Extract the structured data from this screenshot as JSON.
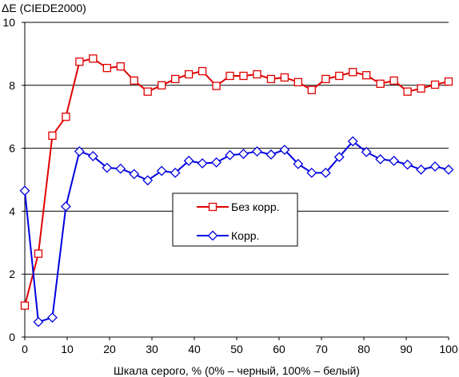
{
  "chart_data": {
    "type": "line",
    "title": "",
    "ylabel": "ΔE (CIEDE2000)",
    "xlabel": "Шкала серого, % (0% – черный, 100% – белый)",
    "xlim": [
      0,
      100
    ],
    "ylim": [
      0,
      10
    ],
    "xticks": [
      0,
      10,
      20,
      30,
      40,
      50,
      60,
      70,
      80,
      90,
      100
    ],
    "yticks": [
      0,
      2,
      4,
      6,
      8,
      10
    ],
    "grid": "horizontal",
    "legend": "center",
    "colors": {
      "series1": "#e00000",
      "series2": "#0000e0",
      "grid": "#000000",
      "legend_border": "#000000"
    },
    "series": [
      {
        "name": "Без корр.",
        "marker": "square",
        "points": [
          [
            0,
            1.0
          ],
          [
            3.2,
            2.65
          ],
          [
            6.5,
            6.4
          ],
          [
            9.7,
            7.0
          ],
          [
            12.9,
            8.75
          ],
          [
            16.1,
            8.85
          ],
          [
            19.4,
            8.55
          ],
          [
            22.6,
            8.6
          ],
          [
            25.8,
            8.15
          ],
          [
            29.0,
            7.8
          ],
          [
            32.3,
            8.0
          ],
          [
            35.5,
            8.2
          ],
          [
            38.7,
            8.35
          ],
          [
            41.9,
            8.45
          ],
          [
            45.2,
            7.98
          ],
          [
            48.4,
            8.3
          ],
          [
            51.6,
            8.3
          ],
          [
            54.8,
            8.35
          ],
          [
            58.1,
            8.2
          ],
          [
            61.3,
            8.25
          ],
          [
            64.5,
            8.1
          ],
          [
            67.7,
            7.85
          ],
          [
            71.0,
            8.2
          ],
          [
            74.2,
            8.3
          ],
          [
            77.4,
            8.42
          ],
          [
            80.6,
            8.32
          ],
          [
            83.9,
            8.05
          ],
          [
            87.1,
            8.15
          ],
          [
            90.3,
            7.8
          ],
          [
            93.5,
            7.9
          ],
          [
            96.8,
            8.02
          ],
          [
            100,
            8.12
          ]
        ]
      },
      {
        "name": "Корр.",
        "marker": "diamond",
        "points": [
          [
            0,
            4.65
          ],
          [
            3.2,
            0.48
          ],
          [
            6.5,
            0.62
          ],
          [
            9.7,
            4.15
          ],
          [
            12.9,
            5.9
          ],
          [
            16.1,
            5.75
          ],
          [
            19.4,
            5.38
          ],
          [
            22.6,
            5.35
          ],
          [
            25.8,
            5.18
          ],
          [
            29.0,
            4.98
          ],
          [
            32.3,
            5.28
          ],
          [
            35.5,
            5.22
          ],
          [
            38.7,
            5.6
          ],
          [
            41.9,
            5.52
          ],
          [
            45.2,
            5.55
          ],
          [
            48.4,
            5.78
          ],
          [
            51.6,
            5.82
          ],
          [
            54.8,
            5.9
          ],
          [
            58.1,
            5.8
          ],
          [
            61.3,
            5.95
          ],
          [
            64.5,
            5.5
          ],
          [
            67.7,
            5.22
          ],
          [
            71.0,
            5.22
          ],
          [
            74.2,
            5.72
          ],
          [
            77.4,
            6.22
          ],
          [
            80.6,
            5.88
          ],
          [
            83.9,
            5.65
          ],
          [
            87.1,
            5.6
          ],
          [
            90.3,
            5.48
          ],
          [
            93.5,
            5.32
          ],
          [
            96.8,
            5.42
          ],
          [
            100,
            5.32
          ]
        ]
      }
    ]
  }
}
